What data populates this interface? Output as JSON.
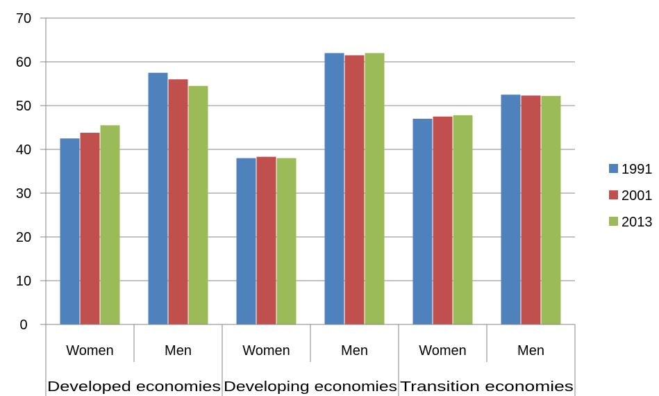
{
  "chart_data": {
    "type": "bar",
    "title": "",
    "xlabel": "",
    "ylabel": "",
    "ylim": [
      0,
      70
    ],
    "yticks": [
      "0",
      "10",
      "20",
      "30",
      "40",
      "50",
      "60",
      "70"
    ],
    "grid": true,
    "legend_position": "right",
    "groups": [
      "Developed economies",
      "Developing economies",
      "Transition economies"
    ],
    "categories": [
      "Women",
      "Men",
      "Women",
      "Men",
      "Women",
      "Men"
    ],
    "series": [
      {
        "name": "1991",
        "color": "#4F81BD",
        "values": [
          42.5,
          57.5,
          38.0,
          62.0,
          47.0,
          52.5
        ]
      },
      {
        "name": "2001",
        "color": "#C0504D",
        "values": [
          43.8,
          56.0,
          38.3,
          61.5,
          47.5,
          52.3
        ]
      },
      {
        "name": "2013",
        "color": "#9BBB59",
        "values": [
          45.5,
          54.5,
          38.0,
          62.0,
          47.8,
          52.2
        ]
      }
    ]
  }
}
